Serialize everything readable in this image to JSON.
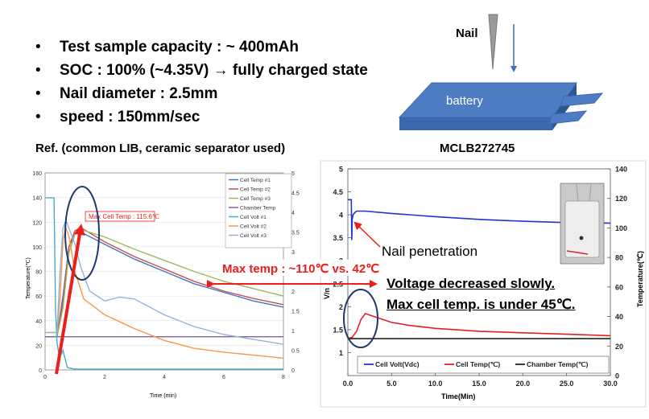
{
  "bullets": [
    "Test sample capacity : ~ 400mAh",
    "SOC : 100% (~4.35V) → fully charged state",
    "Nail diameter : 2.5mm",
    "speed : 150mm/sec"
  ],
  "diagram": {
    "nail_label": "Nail",
    "battery_label": "battery"
  },
  "left_heading": "Ref. (common LIB, ceramic separator used)",
  "right_heading": "MCLB272745",
  "comparison_label": "Max temp : ~110℃ vs. 42℃",
  "notes": [
    "Voltage decreased slowly.",
    "Max cell temp. is under 45℃."
  ],
  "colors": {
    "cell_temp_1": "#4472c4",
    "cell_temp_2": "#c0504d",
    "cell_temp_3": "#9bbb59",
    "chamber_temp": "#8064a2",
    "cell_volt_1": "#4bacc6",
    "cell_volt_2": "#f79646",
    "cell_volt_3": "#95b3d7",
    "arrow_red": "#ee1c1c",
    "ellipse": "#1f3a6a",
    "battery_fill": "#4f7dc4"
  },
  "chart_data": [
    {
      "type": "line",
      "title": "Ref. (common LIB, ceramic separator used)",
      "xlabel": "Time (min)",
      "ylabel": "Temperature(℃)",
      "y2label": "",
      "xlim": [
        0,
        8
      ],
      "ylim": [
        0,
        160
      ],
      "y2lim": [
        0,
        5
      ],
      "xticks": [
        0,
        2,
        4,
        6,
        8
      ],
      "yticks": [
        0,
        20,
        40,
        60,
        80,
        100,
        120,
        140,
        160
      ],
      "y2ticks": [
        0,
        0.5,
        1,
        1.5,
        2,
        2.5,
        3,
        3.5,
        4,
        4.5,
        5
      ],
      "annotation": "Max Cell Temp : 115.6℃",
      "series": [
        {
          "name": "Cell Temp #1",
          "axis": "y",
          "x": [
            0,
            0.4,
            0.6,
            0.8,
            1.0,
            1.2,
            2,
            3,
            4,
            5,
            6,
            7,
            8
          ],
          "y": [
            27,
            27,
            60,
            100,
            110,
            112,
            102,
            90,
            80,
            70,
            63,
            56,
            51
          ]
        },
        {
          "name": "Cell Temp #2",
          "axis": "y",
          "x": [
            0,
            0.4,
            0.6,
            0.8,
            1.0,
            1.2,
            2,
            3,
            4,
            5,
            6,
            7,
            8
          ],
          "y": [
            27,
            27,
            55,
            100,
            113,
            115.6,
            104,
            92,
            82,
            72,
            64,
            58,
            53
          ]
        },
        {
          "name": "Cell Temp #3",
          "axis": "y",
          "x": [
            0,
            0.4,
            0.6,
            0.8,
            1.0,
            1.2,
            2,
            3,
            4,
            5,
            6,
            7,
            8
          ],
          "y": [
            27,
            27,
            50,
            95,
            110,
            114,
            108,
            98,
            89,
            80,
            72,
            66,
            60
          ]
        },
        {
          "name": "Chamber Temp",
          "axis": "y",
          "x": [
            0,
            1,
            2,
            3,
            4,
            5,
            6,
            7,
            8
          ],
          "y": [
            27,
            27,
            27,
            27,
            27,
            27,
            27,
            27,
            27
          ]
        },
        {
          "name": "Cell Volt #1",
          "axis": "y2",
          "x": [
            0,
            0.3,
            0.35,
            0.4,
            0.45,
            0.55,
            0.6,
            0.65,
            0.75,
            1,
            4,
            8
          ],
          "y2": [
            4.37,
            4.37,
            1.5,
            0.7,
            0.45,
            0.4,
            0.5,
            0.35,
            0.06,
            0.02,
            0.02,
            0.02
          ]
        },
        {
          "name": "Cell Volt #2",
          "axis": "y2",
          "x": [
            0,
            0.4,
            0.5,
            0.6,
            0.7,
            0.8,
            1.0,
            1.3,
            2,
            3,
            4,
            5,
            6,
            8
          ],
          "y2": [
            0.95,
            0.95,
            1.8,
            3.3,
            3.6,
            3.4,
            2.5,
            1.8,
            1.4,
            1.05,
            0.75,
            0.55,
            0.45,
            0.3
          ]
        },
        {
          "name": "Cell Volt #3",
          "axis": "y2",
          "x": [
            0,
            0.4,
            0.5,
            0.6,
            0.7,
            0.8,
            1.0,
            1.2,
            1.5,
            2,
            2.5,
            3,
            4,
            5,
            6,
            8
          ],
          "y2": [
            0.95,
            0.95,
            2.5,
            3.6,
            3.8,
            3.6,
            3.2,
            2.6,
            2.0,
            1.75,
            1.85,
            1.8,
            1.4,
            1.1,
            0.9,
            0.65
          ]
        }
      ]
    },
    {
      "type": "line",
      "title": "MCLB272745",
      "xlabel": "Time(Min)",
      "ylabel": "V/n",
      "y2label": "Temperature(℃)",
      "xlim": [
        0,
        30
      ],
      "ylim": [
        0.5,
        5
      ],
      "y2lim": [
        0,
        140
      ],
      "xticks": [
        0.0,
        5.0,
        10.0,
        15.0,
        20.0,
        25.0,
        30.0
      ],
      "xtick_labels": [
        "0.0",
        "5.0",
        "10.0",
        "15.0",
        "20.0",
        "25.0",
        "30.0"
      ],
      "yticks": [
        1,
        1.5,
        2,
        2.5,
        3,
        3.5,
        4,
        4.5,
        5
      ],
      "y2ticks": [
        0,
        20,
        40,
        60,
        80,
        100,
        120,
        140
      ],
      "annotation": "Nail penetration",
      "series": [
        {
          "name": "Cell Volt(Vdc)",
          "axis": "y",
          "x": [
            0,
            0.4,
            0.45,
            0.5,
            0.6,
            0.8,
            1,
            2,
            5,
            10,
            15,
            20,
            25,
            30
          ],
          "y": [
            4.33,
            4.33,
            3.45,
            3.9,
            4.0,
            4.05,
            4.08,
            4.08,
            4.03,
            3.96,
            3.9,
            3.86,
            3.83,
            3.82
          ]
        },
        {
          "name": "Cell Temp(℃)",
          "axis": "y2",
          "x": [
            0,
            0.5,
            1,
            1.5,
            2,
            3,
            4,
            5,
            7,
            10,
            15,
            20,
            25,
            30
          ],
          "y2": [
            25,
            26,
            30,
            38,
            42,
            40,
            38,
            36,
            34,
            32,
            30,
            29,
            28,
            27
          ]
        },
        {
          "name": "Chamber Temp(℃)",
          "axis": "y2",
          "x": [
            0,
            30
          ],
          "y2": [
            25,
            25
          ]
        }
      ]
    }
  ]
}
